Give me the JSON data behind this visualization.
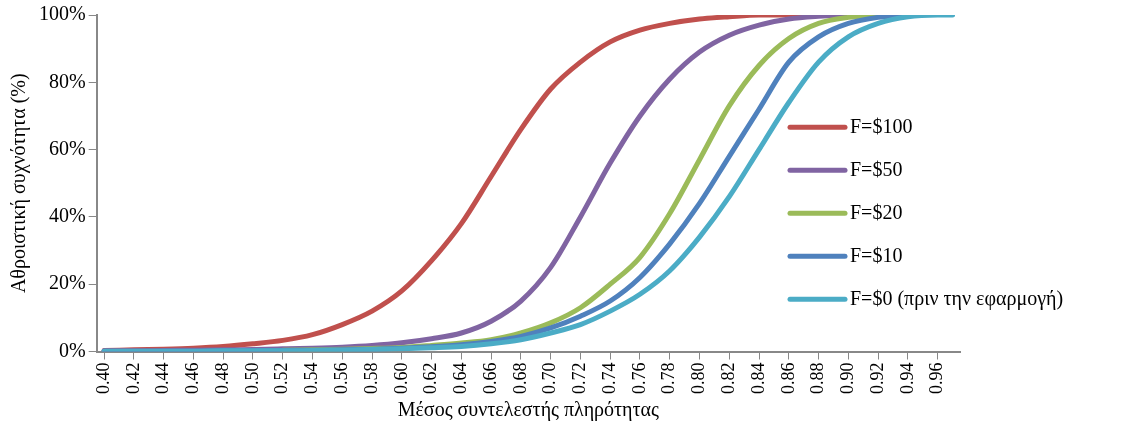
{
  "chart_data": {
    "type": "line",
    "xlabel": "Μέσος συντελεστής πληρότητας",
    "ylabel": "Αθροιστική συχνότητα (%)",
    "x": [
      0.4,
      0.42,
      0.44,
      0.46,
      0.48,
      0.5,
      0.52,
      0.54,
      0.56,
      0.58,
      0.6,
      0.62,
      0.64,
      0.66,
      0.68,
      0.7,
      0.72,
      0.74,
      0.76,
      0.78,
      0.8,
      0.82,
      0.84,
      0.86,
      0.88,
      0.9,
      0.92,
      0.94,
      0.96,
      0.97
    ],
    "series": [
      {
        "name": "F=$100",
        "color": "#c0504d",
        "values": [
          0.3,
          0.5,
          0.7,
          1,
          1.5,
          2.3,
          3.3,
          5,
          8,
          12,
          18,
          27,
          38,
          52,
          66,
          78,
          86,
          92,
          95.5,
          97.5,
          98.8,
          99.5,
          100,
          100,
          100,
          null,
          null,
          null,
          null,
          null
        ]
      },
      {
        "name": "F=$50",
        "color": "#8064a2",
        "values": [
          0.2,
          0.2,
          0.3,
          0.4,
          0.5,
          0.6,
          0.8,
          1,
          1.3,
          1.8,
          2.6,
          3.8,
          5.5,
          9,
          15,
          25,
          40,
          56,
          70,
          81,
          89,
          94,
          97,
          98.8,
          99.6,
          100,
          100,
          100,
          null,
          null
        ]
      },
      {
        "name": "F=$20",
        "color": "#9bbb59",
        "values": [
          null,
          null,
          null,
          null,
          null,
          null,
          0.4,
          0.5,
          0.7,
          0.9,
          1.2,
          1.8,
          2.5,
          3.5,
          5.5,
          8.5,
          13,
          20,
          28,
          41,
          57,
          73,
          85,
          93,
          97.5,
          99.3,
          100,
          null,
          null,
          null
        ]
      },
      {
        "name": "F=$10",
        "color": "#4f81bd",
        "values": [
          0.1,
          0.1,
          0.1,
          0.1,
          0.2,
          0.2,
          0.3,
          0.4,
          0.5,
          0.7,
          1,
          1.4,
          2,
          3,
          4.5,
          7,
          10.5,
          15,
          22,
          32,
          44,
          58,
          72,
          86,
          93.5,
          97.5,
          99.3,
          100,
          null,
          null
        ]
      },
      {
        "name": "F=$0 (πριν την εφαρμογή)",
        "color": "#4bacc6",
        "values": [
          0.1,
          0.1,
          0.1,
          0.1,
          0.2,
          0.2,
          0.2,
          0.3,
          0.4,
          0.6,
          0.8,
          1.1,
          1.5,
          2.3,
          3.5,
          5.5,
          8,
          12,
          17,
          24,
          34,
          46,
          60,
          74,
          86,
          93.5,
          97.5,
          99.5,
          100,
          100
        ]
      }
    ],
    "xlim": [
      0.395,
      0.975
    ],
    "xticks": [
      {
        "value": 0.4,
        "label": "0.40"
      },
      {
        "value": 0.42,
        "label": "0.42"
      },
      {
        "value": 0.44,
        "label": "0.44"
      },
      {
        "value": 0.46,
        "label": "0.46"
      },
      {
        "value": 0.48,
        "label": "0.48"
      },
      {
        "value": 0.5,
        "label": "0.50"
      },
      {
        "value": 0.52,
        "label": "0.52"
      },
      {
        "value": 0.54,
        "label": "0.54"
      },
      {
        "value": 0.56,
        "label": "0.56"
      },
      {
        "value": 0.58,
        "label": "0.58"
      },
      {
        "value": 0.6,
        "label": "0.60"
      },
      {
        "value": 0.62,
        "label": "0.62"
      },
      {
        "value": 0.64,
        "label": "0.64"
      },
      {
        "value": 0.66,
        "label": "0.66"
      },
      {
        "value": 0.68,
        "label": "0.68"
      },
      {
        "value": 0.7,
        "label": "0.70"
      },
      {
        "value": 0.72,
        "label": "0.72"
      },
      {
        "value": 0.74,
        "label": "0.74"
      },
      {
        "value": 0.76,
        "label": "0.76"
      },
      {
        "value": 0.78,
        "label": "0.78"
      },
      {
        "value": 0.8,
        "label": "0.80"
      },
      {
        "value": 0.82,
        "label": "0.82"
      },
      {
        "value": 0.84,
        "label": "0.84"
      },
      {
        "value": 0.86,
        "label": "0.86"
      },
      {
        "value": 0.88,
        "label": "0.88"
      },
      {
        "value": 0.9,
        "label": "0.90"
      },
      {
        "value": 0.92,
        "label": "0.92"
      },
      {
        "value": 0.94,
        "label": "0.94"
      },
      {
        "value": 0.96,
        "label": "0.96"
      }
    ],
    "ylim": [
      0,
      100
    ],
    "yticks": [
      {
        "value": 0,
        "label": "0%"
      },
      {
        "value": 20,
        "label": "20%"
      },
      {
        "value": 40,
        "label": "40%"
      },
      {
        "value": 60,
        "label": "60%"
      },
      {
        "value": 80,
        "label": "80%"
      },
      {
        "value": 100,
        "label": "100%"
      }
    ],
    "grid": false,
    "legend": "right",
    "marker": "none",
    "line_style": "solid"
  }
}
